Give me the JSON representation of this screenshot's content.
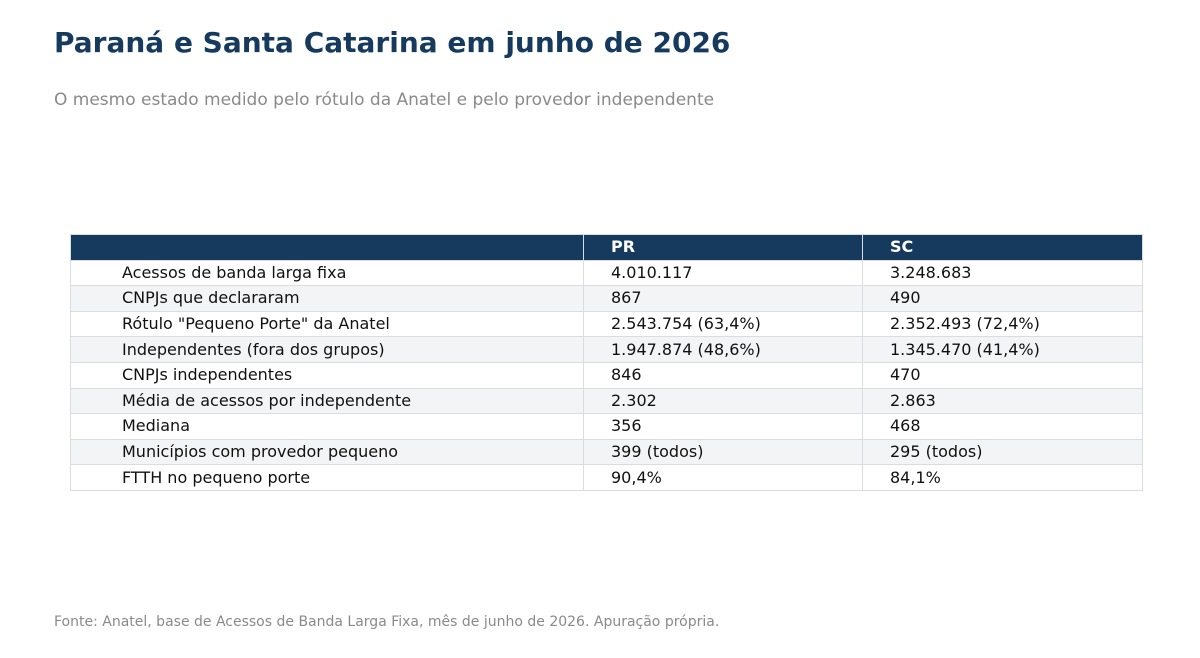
{
  "title": "Paraná e Santa Catarina em junho de 2026",
  "subtitle": "O mesmo estado medido pelo rótulo da Anatel e pelo provedor independente",
  "source": "Fonte: Anatel, base de Acessos de Banda Larga Fixa, mês de junho de 2026. Apuração própria.",
  "colors": {
    "title": "#153a5e",
    "header_bg": "#153a5e",
    "header_text": "#ffffff",
    "muted_text": "#8a8a8a",
    "row_alt": "#f3f4f6",
    "border": "#d9dde2"
  },
  "chart_data": {
    "type": "table",
    "title": "Paraná e Santa Catarina em junho de 2026",
    "subtitle": "O mesmo estado medido pelo rótulo da Anatel e pelo provedor independente",
    "columns": [
      "",
      "PR",
      "SC"
    ],
    "rows": [
      [
        "Acessos de banda larga fixa",
        "4.010.117",
        "3.248.683"
      ],
      [
        "CNPJs que declararam",
        "867",
        "490"
      ],
      [
        "Rótulo \"Pequeno Porte\" da Anatel",
        "2.543.754  (63,4%)",
        "2.352.493  (72,4%)"
      ],
      [
        "Independentes (fora dos grupos)",
        "1.947.874  (48,6%)",
        "1.345.470  (41,4%)"
      ],
      [
        "CNPJs independentes",
        "846",
        "470"
      ],
      [
        "Média de acessos por independente",
        "2.302",
        "2.863"
      ],
      [
        "Mediana",
        "356",
        "468"
      ],
      [
        "Municípios com provedor pequeno",
        "399 (todos)",
        "295 (todos)"
      ],
      [
        "FTTH no pequeno porte",
        "90,4%",
        "84,1%"
      ]
    ]
  }
}
